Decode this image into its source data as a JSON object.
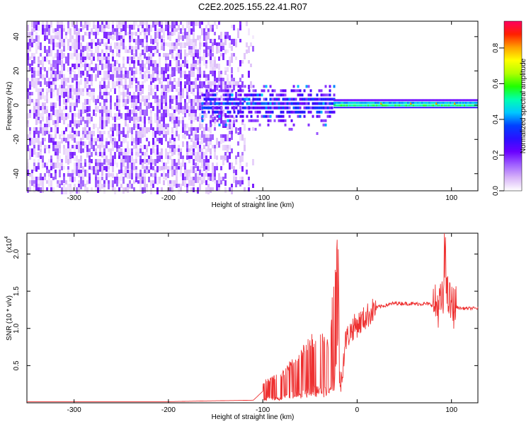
{
  "title": "C2E2.2025.155.22.41.R07",
  "chart_data": [
    {
      "type": "heatmap",
      "xlabel": "Height of straight line (km)",
      "ylabel": "Frequency (Hz)",
      "xlim": [
        -350,
        128
      ],
      "ylim": [
        -50,
        49
      ],
      "xticks": [
        -300,
        -200,
        -100,
        0,
        100
      ],
      "yticks": [
        -40,
        -20,
        0,
        20,
        40
      ],
      "colorbar": {
        "label": "Normalized spectral amplitude",
        "range": [
          0,
          0.95
        ],
        "ticks": [
          0.0,
          0.2,
          0.4,
          0.6,
          0.8
        ],
        "colors": [
          "#ffffff",
          "#d8b4f8",
          "#a060ff",
          "#6a00ff",
          "#2a10ff",
          "#0040ff",
          "#00c8ff",
          "#00ffb0",
          "#20ff00",
          "#b0ff00",
          "#ffff00",
          "#ffa000",
          "#ff2000",
          "#ff0060"
        ]
      },
      "regions": [
        {
          "x": [
            -350,
            -165
          ],
          "description_level": 0.05
        },
        {
          "x": [
            -165,
            -25
          ],
          "description_level": 0.25
        },
        {
          "x": [
            -25,
            128
          ],
          "description_level": 0.5
        }
      ]
    },
    {
      "type": "line",
      "xlabel": "Height of straight line (km)",
      "ylabel": "SNR (10 * v/v)",
      "exponent_label": "(x10",
      "exponent_value": "4",
      "xlim": [
        -350,
        128
      ],
      "ylim": [
        0,
        2.28
      ],
      "xticks": [
        -300,
        -200,
        -100,
        0,
        100
      ],
      "yticks": [
        0.5,
        1.0,
        1.5,
        2.0
      ],
      "series": [
        {
          "color": "#ee3030",
          "points": [
            [
              -350,
              0.01
            ],
            [
              -200,
              0.01
            ],
            [
              -160,
              0.02
            ],
            [
              -110,
              0.03
            ],
            [
              -100,
              0.15
            ],
            [
              -80,
              0.2
            ],
            [
              -60,
              0.35
            ],
            [
              -40,
              0.5
            ],
            [
              -30,
              0.4
            ],
            [
              -22,
              1.0
            ],
            [
              -18,
              0.2
            ],
            [
              -12,
              0.85
            ],
            [
              -5,
              1.0
            ],
            [
              5,
              1.1
            ],
            [
              20,
              1.28
            ],
            [
              40,
              1.34
            ],
            [
              60,
              1.33
            ],
            [
              75,
              1.33
            ],
            [
              85,
              1.3
            ],
            [
              90,
              1.35
            ],
            [
              95,
              1.45
            ],
            [
              100,
              1.3
            ],
            [
              110,
              1.27
            ],
            [
              128,
              1.27
            ]
          ]
        }
      ]
    }
  ]
}
